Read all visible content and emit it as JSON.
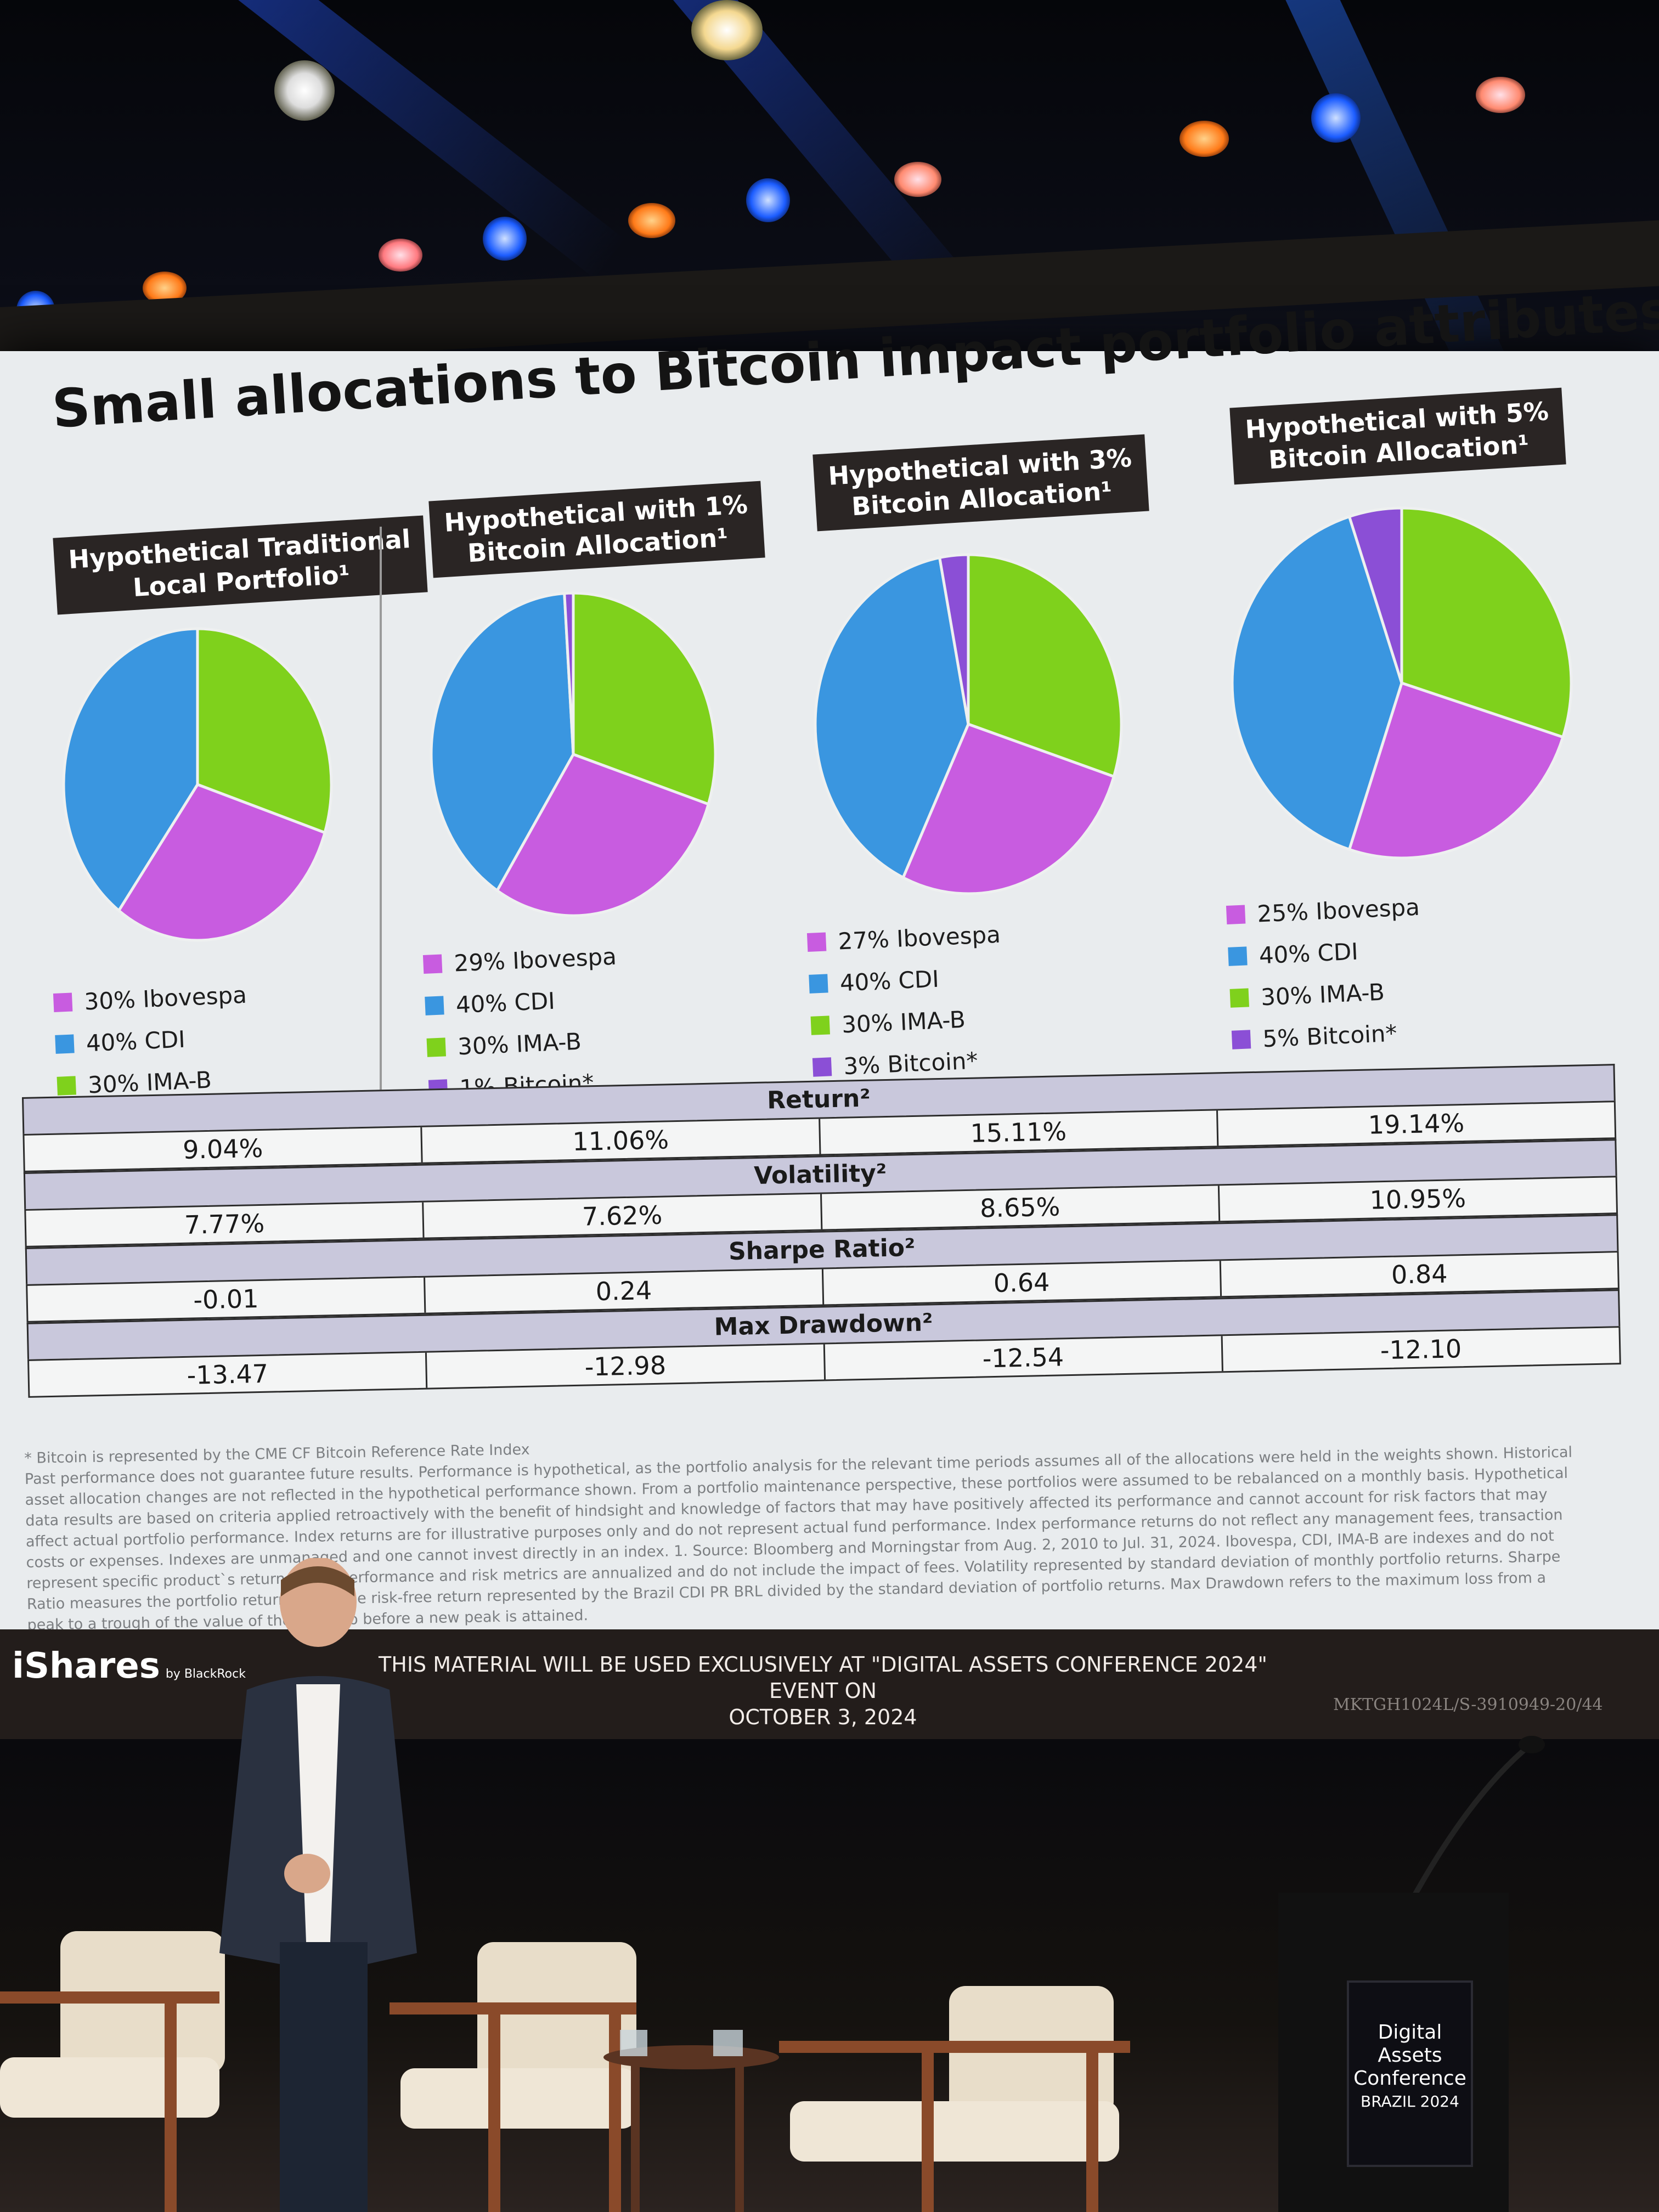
{
  "slide": {
    "title": "Small allocations to Bitcoin impact portfolio attributes",
    "footnotes": [
      "* Bitcoin is represented by the CME CF Bitcoin Reference Rate Index",
      "Past performance does not guarantee future results. Performance is hypothetical, as the portfolio analysis for the relevant time periods assumes all of the allocations were held in the weights shown. Historical asset allocation changes are not reflected in the hypothetical performance shown. From a portfolio maintenance perspective, these portfolios were assumed to be rebalanced on a monthly basis. Hypothetical data results are based on criteria applied retroactively with the benefit of hindsight and knowledge of factors that may have positively affected its performance and cannot account for risk factors that may affect actual portfolio performance. Index returns are for illustrative purposes only and do not represent actual fund performance. Index performance returns do not reflect any management fees, transaction costs or expenses. Indexes are unmanaged and one cannot invest directly in an index. 1. Source: Bloomberg and Morningstar from Aug. 2, 2010 to Jul. 31, 2024. Ibovespa, CDI, IMA-B are indexes and do not represent specific product`s returns 2. All performance and risk metrics are annualized and do not include the impact of fees. Volatility represented by standard deviation of monthly portfolio returns. Sharpe Ratio measures the portfolio return minus the risk-free return represented by the Brazil CDI PR BRL divided by the standard deviation of portfolio returns. Max Drawdown refers to the maximum loss from a peak to a trough of the value of the portfolio before a new peak is attained."
    ],
    "brand": "iShares",
    "brand_sub": "by BlackRock",
    "disclaimer_line1": "THIS MATERIAL WILL BE USED EXCLUSIVELY AT \"DIGITAL ASSETS CONFERENCE 2024\" EVENT ON",
    "disclaimer_line2": "OCTOBER 3, 2024",
    "code": "MKTGH1024L/S-3910949-20/44"
  },
  "podium": {
    "line1": "Digital Assets",
    "line2": "Conference",
    "line3": "BRAZIL 2024"
  },
  "colors": {
    "ibovespa": "#c85ce0",
    "cdi": "#3a96e0",
    "imab": "#7fd11c",
    "bitcoin": "#8b4fd6"
  },
  "chart_data": [
    {
      "type": "pie",
      "title_line1": "Hypothetical Traditional",
      "title_line2": "Local Portfolio¹",
      "slices": [
        {
          "label": "30% Ibovespa",
          "name": "Ibovespa",
          "value": 30
        },
        {
          "label": "40% CDI",
          "name": "CDI",
          "value": 40
        },
        {
          "label": "30% IMA-B",
          "name": "IMA-B",
          "value": 30
        }
      ]
    },
    {
      "type": "pie",
      "title_line1": "Hypothetical with 1%",
      "title_line2": "Bitcoin Allocation¹",
      "slices": [
        {
          "label": "29% Ibovespa",
          "name": "Ibovespa",
          "value": 29
        },
        {
          "label": "40% CDI",
          "name": "CDI",
          "value": 40
        },
        {
          "label": "30% IMA-B",
          "name": "IMA-B",
          "value": 30
        },
        {
          "label": "1% Bitcoin*",
          "name": "Bitcoin",
          "value": 1
        }
      ]
    },
    {
      "type": "pie",
      "title_line1": "Hypothetical with 3%",
      "title_line2": "Bitcoin Allocation¹",
      "slices": [
        {
          "label": "27% Ibovespa",
          "name": "Ibovespa",
          "value": 27
        },
        {
          "label": "40% CDI",
          "name": "CDI",
          "value": 40
        },
        {
          "label": "30% IMA-B",
          "name": "IMA-B",
          "value": 30
        },
        {
          "label": "3% Bitcoin*",
          "name": "Bitcoin",
          "value": 3
        }
      ]
    },
    {
      "type": "pie",
      "title_line1": "Hypothetical with 5%",
      "title_line2": "Bitcoin Allocation¹",
      "slices": [
        {
          "label": "25% Ibovespa",
          "name": "Ibovespa",
          "value": 25
        },
        {
          "label": "40% CDI",
          "name": "CDI",
          "value": 40
        },
        {
          "label": "30% IMA-B",
          "name": "IMA-B",
          "value": 30
        },
        {
          "label": "5% Bitcoin*",
          "name": "Bitcoin",
          "value": 5
        }
      ]
    },
    {
      "type": "table",
      "sections": [
        {
          "header": "Return²",
          "values": [
            "9.04%",
            "11.06%",
            "15.11%",
            "19.14%"
          ]
        },
        {
          "header": "Volatility²",
          "values": [
            "7.77%",
            "7.62%",
            "8.65%",
            "10.95%"
          ]
        },
        {
          "header": "Sharpe Ratio²",
          "values": [
            "-0.01",
            "0.24",
            "0.64",
            "0.84"
          ]
        },
        {
          "header": "Max Drawdown²",
          "values": [
            "-13.47",
            "-12.98",
            "-12.54",
            "-12.10"
          ]
        }
      ]
    }
  ]
}
